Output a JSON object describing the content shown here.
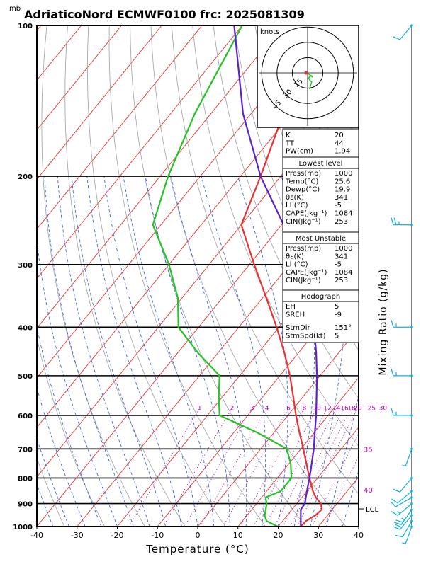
{
  "header": {
    "units_label": "mb",
    "title": "AdriaticoNord ECMWF0100 frc: 2025081309"
  },
  "colors": {
    "temperature": "#e83232",
    "dewpoint": "#22c322",
    "parcel": "#5a22cc",
    "isotherm": "#e83232",
    "dry_adiabat": "#a0a0a0",
    "moist_adiabat": "#2a57e6",
    "mixing_ratio": "#b000b0",
    "hodograph": "#22c322",
    "wind_barb": "#0ab0e0"
  },
  "chart_data": {
    "type": "line",
    "subtype": "skew-T log-P diagram",
    "xlabel": "Temperature (°C)",
    "ylabel": "mb",
    "right_axis_label": "Mixing Ratio (g/kg)",
    "x_ticks": [
      -40,
      -30,
      -20,
      -10,
      0,
      10,
      20,
      30,
      40
    ],
    "pressure_ticks": [
      100,
      200,
      300,
      400,
      500,
      600,
      700,
      800,
      900,
      1000
    ],
    "xlim": [
      -40,
      40
    ],
    "ylim_pressure": [
      1000,
      100
    ],
    "log_pressure": true,
    "mixing_ratio_labels": [
      "1",
      "2",
      "3",
      "4",
      "6",
      "8",
      "10",
      "12",
      "14",
      "16",
      "18",
      "20",
      "25",
      "30"
    ],
    "mixing_ratio_values": [
      1,
      2,
      3,
      4,
      6,
      8,
      10,
      12,
      14,
      16,
      18,
      20,
      25,
      30
    ],
    "mixing_ratio_label_pressure": 580,
    "right_temp_labels": [
      {
        "label": "35",
        "pressure": 700
      },
      {
        "label": "40",
        "pressure": 845
      }
    ],
    "lcl_label": "LCL",
    "lcl_pressure": 922,
    "series": [
      {
        "name": "Temperature",
        "pressure": [
          1000,
          975,
          950,
          925,
          900,
          875,
          850,
          800,
          750,
          700,
          650,
          600,
          550,
          500,
          450,
          400,
          350,
          300,
          250,
          200,
          150,
          100
        ],
        "temperature": [
          25.6,
          25.8,
          27.0,
          27.4,
          26.0,
          23.5,
          21.5,
          18.0,
          14.4,
          10.6,
          6.4,
          2.0,
          -2.5,
          -7.5,
          -13.5,
          -20.6,
          -29,
          -38.8,
          -50,
          -55,
          -62,
          -68
        ]
      },
      {
        "name": "Dewpoint",
        "pressure": [
          1000,
          975,
          950,
          925,
          900,
          875,
          850,
          800,
          750,
          700,
          650,
          600,
          550,
          500,
          450,
          400,
          350,
          300,
          250,
          200,
          150,
          100
        ],
        "temperature": [
          19.9,
          16.0,
          14.4,
          13.5,
          12.5,
          11.0,
          13.5,
          13.5,
          10.5,
          6.5,
          -4.0,
          -17.0,
          -21.0,
          -25.0,
          -35.0,
          -45.0,
          -51.0,
          -60.0,
          -72.0,
          -78.0,
          -84.0,
          -90.0
        ]
      },
      {
        "name": "Parcel",
        "pressure": [
          1000,
          925,
          900,
          850,
          800,
          750,
          700,
          650,
          600,
          550,
          500,
          450,
          400,
          350,
          300,
          250,
          200,
          150,
          100
        ],
        "temperature": [
          25.6,
          22.2,
          22.0,
          20.0,
          18.0,
          15.7,
          13.2,
          10.2,
          7.0,
          3.3,
          -0.8,
          -5.6,
          -11.3,
          -18.5,
          -27.5,
          -39.5,
          -55.0,
          -72.0,
          -92.0
        ]
      }
    ],
    "wind_barbs": [
      {
        "pressure": 1000,
        "speed_kt": 5,
        "dir": 200
      },
      {
        "pressure": 975,
        "speed_kt": 10,
        "dir": 210
      },
      {
        "pressure": 950,
        "speed_kt": 20,
        "dir": 220
      },
      {
        "pressure": 925,
        "speed_kt": 25,
        "dir": 215
      },
      {
        "pressure": 900,
        "speed_kt": 15,
        "dir": 230
      },
      {
        "pressure": 875,
        "speed_kt": 10,
        "dir": 240
      },
      {
        "pressure": 850,
        "speed_kt": 10,
        "dir": 230
      },
      {
        "pressure": 800,
        "speed_kt": 10,
        "dir": 220
      },
      {
        "pressure": 700,
        "speed_kt": 5,
        "dir": 200
      },
      {
        "pressure": 600,
        "speed_kt": 15,
        "dir": 270
      },
      {
        "pressure": 500,
        "speed_kt": 15,
        "dir": 270
      },
      {
        "pressure": 400,
        "speed_kt": 15,
        "dir": 270
      },
      {
        "pressure": 250,
        "speed_kt": 25,
        "dir": 270
      },
      {
        "pressure": 100,
        "speed_kt": 10,
        "dir": 220
      }
    ],
    "hodograph": {
      "units": "knots",
      "ring_labels": [
        "15",
        "30",
        "45"
      ],
      "ring_values": [
        15,
        30,
        45
      ],
      "points": [
        [
          0,
          0
        ],
        [
          2,
          2
        ],
        [
          4,
          3
        ],
        [
          5,
          4
        ],
        [
          3,
          3
        ],
        [
          1,
          5
        ],
        [
          2,
          7
        ],
        [
          4,
          9
        ],
        [
          3,
          12
        ],
        [
          2,
          16
        ]
      ]
    }
  },
  "indices": {
    "general": [
      {
        "label": "K",
        "value": "20"
      },
      {
        "label": "TT",
        "value": "44"
      },
      {
        "label": "PW(cm)",
        "value": "1.94"
      }
    ],
    "lowest_level": {
      "title": "Lowest level",
      "rows": [
        {
          "label": "Press(mb)",
          "value": "1000"
        },
        {
          "label": "Temp(°C)",
          "value": "25.6"
        },
        {
          "label": "Dewp(°C)",
          "value": "19.9"
        },
        {
          "label": "θε(K)",
          "value": "341"
        },
        {
          "label": "LI (°C)",
          "value": "-5"
        },
        {
          "label": "CAPE(Jkg⁻¹)",
          "value": "1084"
        },
        {
          "label": "CIN(Jkg⁻¹)",
          "value": "253"
        }
      ]
    },
    "most_unstable": {
      "title": "Most Unstable",
      "rows": [
        {
          "label": "Press(mb)",
          "value": "1000"
        },
        {
          "label": "θε(K)",
          "value": "341"
        },
        {
          "label": "LI (°C)",
          "value": "-5"
        },
        {
          "label": "CAPE(Jkg⁻¹)",
          "value": "1084"
        },
        {
          "label": "CIN(Jkg⁻¹)",
          "value": "253"
        }
      ]
    },
    "hodograph": {
      "title": "Hodograph",
      "rows": [
        {
          "label": "EH",
          "value": "5"
        },
        {
          "label": "SREH",
          "value": "-9"
        },
        {
          "label": "StmDir",
          "value": "151°"
        },
        {
          "label": "StmSpd(kt)",
          "value": "5"
        }
      ]
    }
  }
}
